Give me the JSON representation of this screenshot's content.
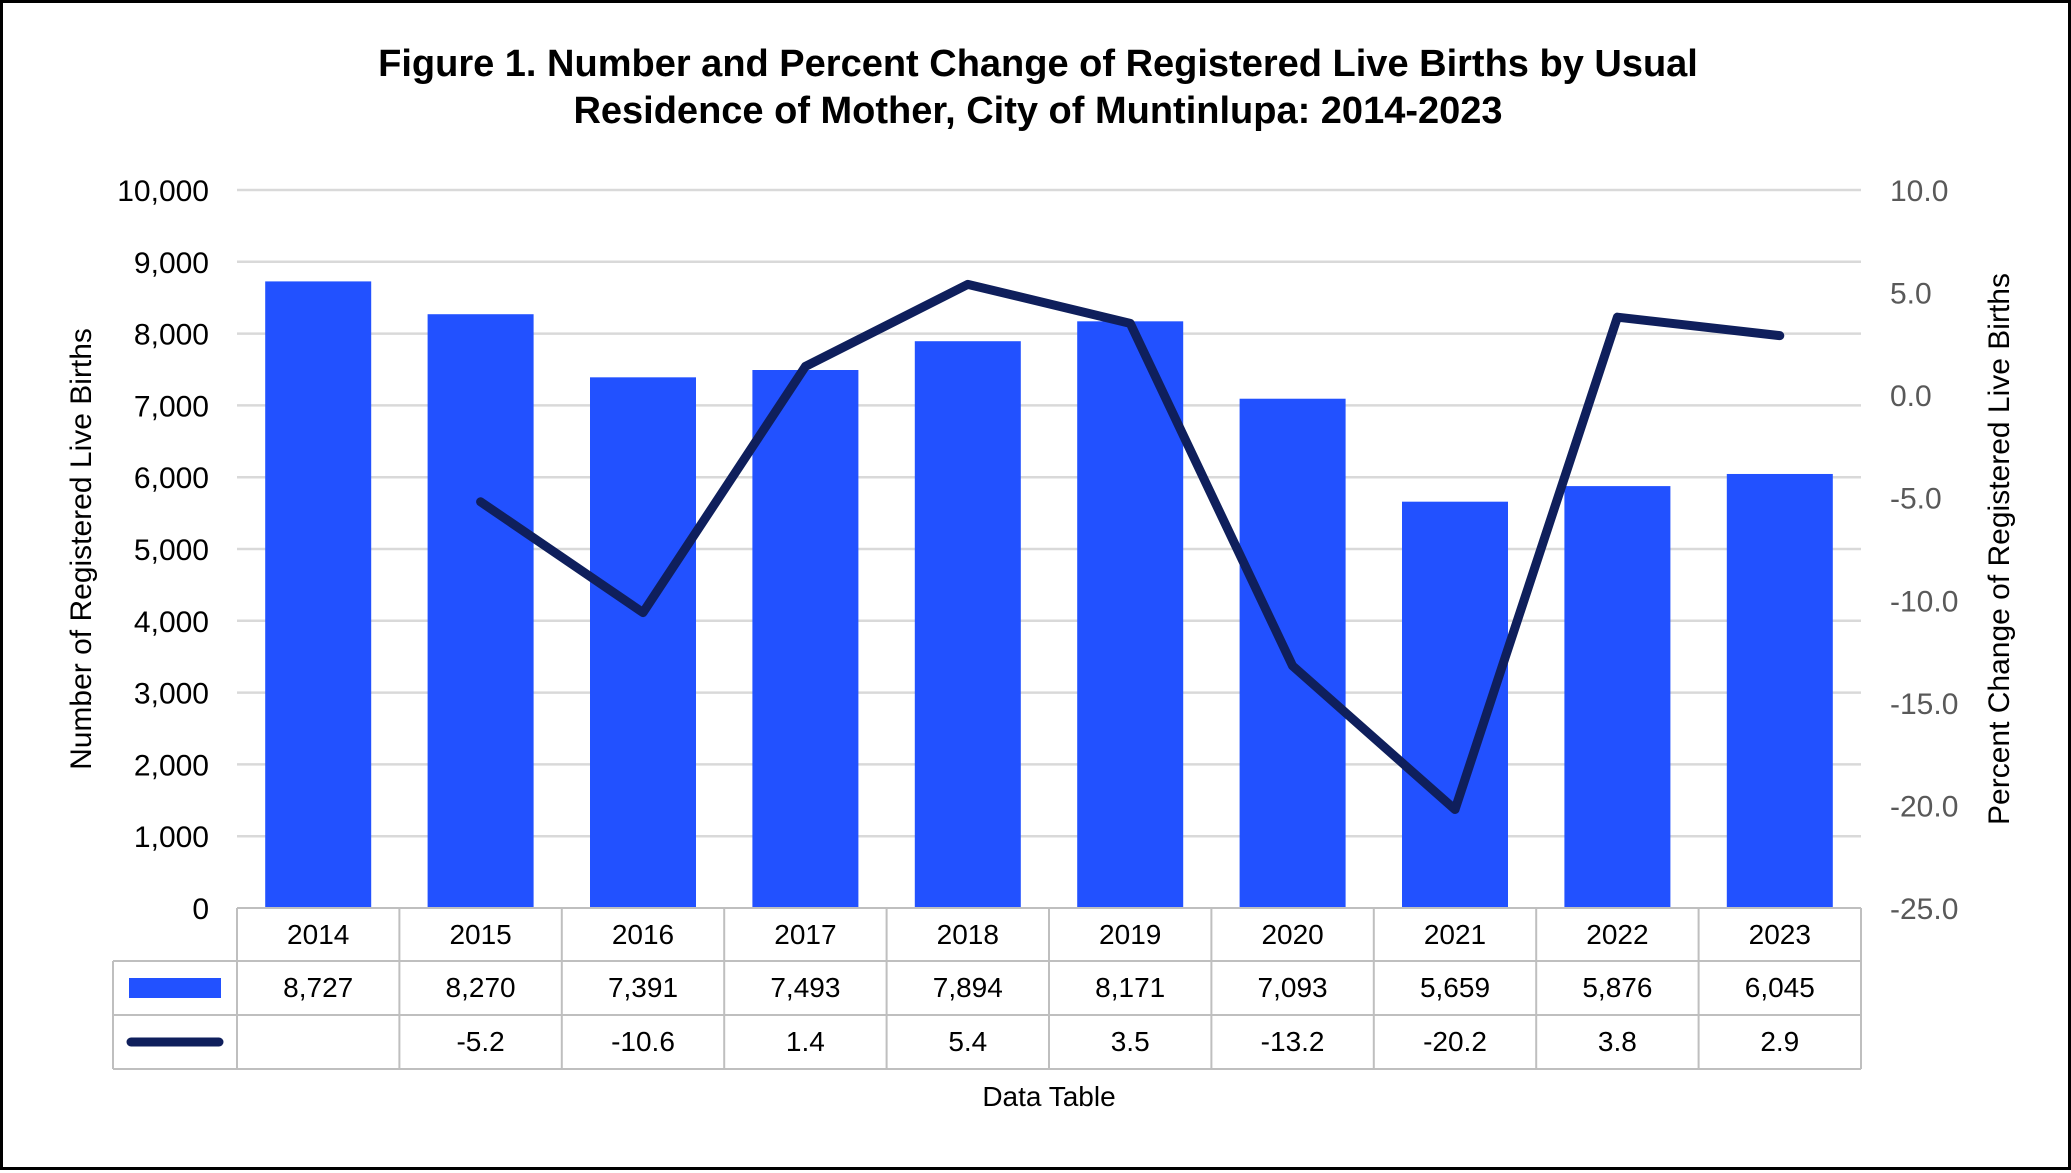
{
  "chart_data": {
    "type": "bar",
    "title_lines": [
      "Figure 1. Number and Percent Change of Registered Live Births by Usual",
      "Residence of Mother, City of Muntinlupa: 2014-2023"
    ],
    "categories": [
      "2014",
      "2015",
      "2016",
      "2017",
      "2018",
      "2019",
      "2020",
      "2021",
      "2022",
      "2023"
    ],
    "series": [
      {
        "type": "bar",
        "axis": "left",
        "color": "#2251FF",
        "values": [
          8727,
          8270,
          7391,
          7493,
          7894,
          8171,
          7093,
          5659,
          5876,
          6045
        ],
        "labels": [
          "8,727",
          "8,270",
          "7,391",
          "7,493",
          "7,894",
          "8,171",
          "7,093",
          "5,659",
          "5,876",
          "6,045"
        ]
      },
      {
        "type": "line",
        "axis": "right",
        "color": "#0F1F5C",
        "values": [
          null,
          -5.2,
          -10.6,
          1.4,
          5.4,
          3.5,
          -13.2,
          -20.2,
          3.8,
          2.9
        ],
        "labels": [
          "",
          "-5.2",
          "-10.6",
          "1.4",
          "5.4",
          "3.5",
          "-13.2",
          "-20.2",
          "3.8",
          "2.9"
        ]
      }
    ],
    "ylabel": "Number of Registered Live Births",
    "y2label": "Percent Change of Registered Live Births",
    "ylim": [
      0,
      10000
    ],
    "y2lim": [
      -25,
      10
    ],
    "yticks": [
      "0",
      "1,000",
      "2,000",
      "3,000",
      "4,000",
      "5,000",
      "6,000",
      "7,000",
      "8,000",
      "9,000",
      "10,000"
    ],
    "y2ticks": [
      "-25.0",
      "-20.0",
      "-15.0",
      "-10.0",
      "-5.0",
      "0.0",
      "5.0",
      "10.0"
    ],
    "data_table_caption": "Data Table",
    "grid": true,
    "gridline_color": "#D9D9D9"
  }
}
